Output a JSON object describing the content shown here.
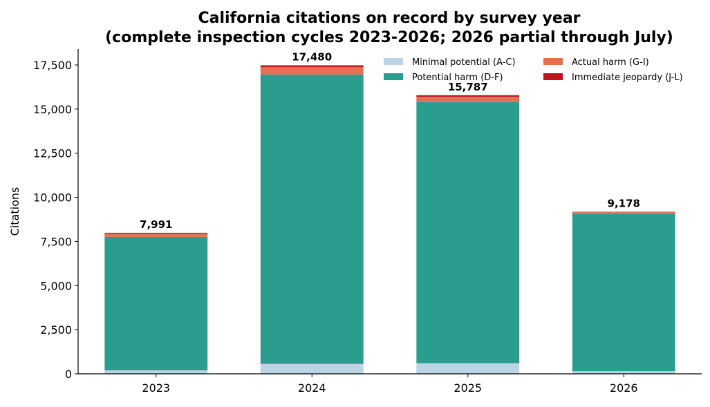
{
  "chart_data": {
    "type": "bar",
    "stacked": true,
    "title": "California citations on record by survey year",
    "subtitle": "(complete inspection cycles 2023-2026; 2026 partial through July)",
    "xlabel": "",
    "ylabel": "Citations",
    "categories": [
      "2023",
      "2024",
      "2025",
      "2026"
    ],
    "ylim": [
      0,
      18400
    ],
    "yticks": [
      0,
      2500,
      5000,
      7500,
      10000,
      12500,
      15000,
      17500
    ],
    "ytick_labels": [
      "0",
      "2,500",
      "5,000",
      "7,500",
      "10,000",
      "12,500",
      "15,000",
      "17,500"
    ],
    "series": [
      {
        "name": "Minimal potential (A-C)",
        "color": "#bcd4e6",
        "values": [
          200,
          560,
          600,
          150
        ]
      },
      {
        "name": "Potential harm (D-F)",
        "color": "#2a9d8f",
        "values": [
          7560,
          16400,
          14800,
          8910
        ]
      },
      {
        "name": "Actual harm (G-I)",
        "color": "#e76f51",
        "values": [
          190,
          420,
          300,
          100
        ]
      },
      {
        "name": "Immediate jeopardy (J-L)",
        "color": "#c1121f",
        "values": [
          41,
          100,
          87,
          18
        ]
      }
    ],
    "totals": [
      7991,
      17480,
      15787,
      9178
    ],
    "total_labels": [
      "7,991",
      "17,480",
      "15,787",
      "9,178"
    ],
    "legend": {
      "position": "top-right",
      "columns": 2
    },
    "grid": false
  }
}
